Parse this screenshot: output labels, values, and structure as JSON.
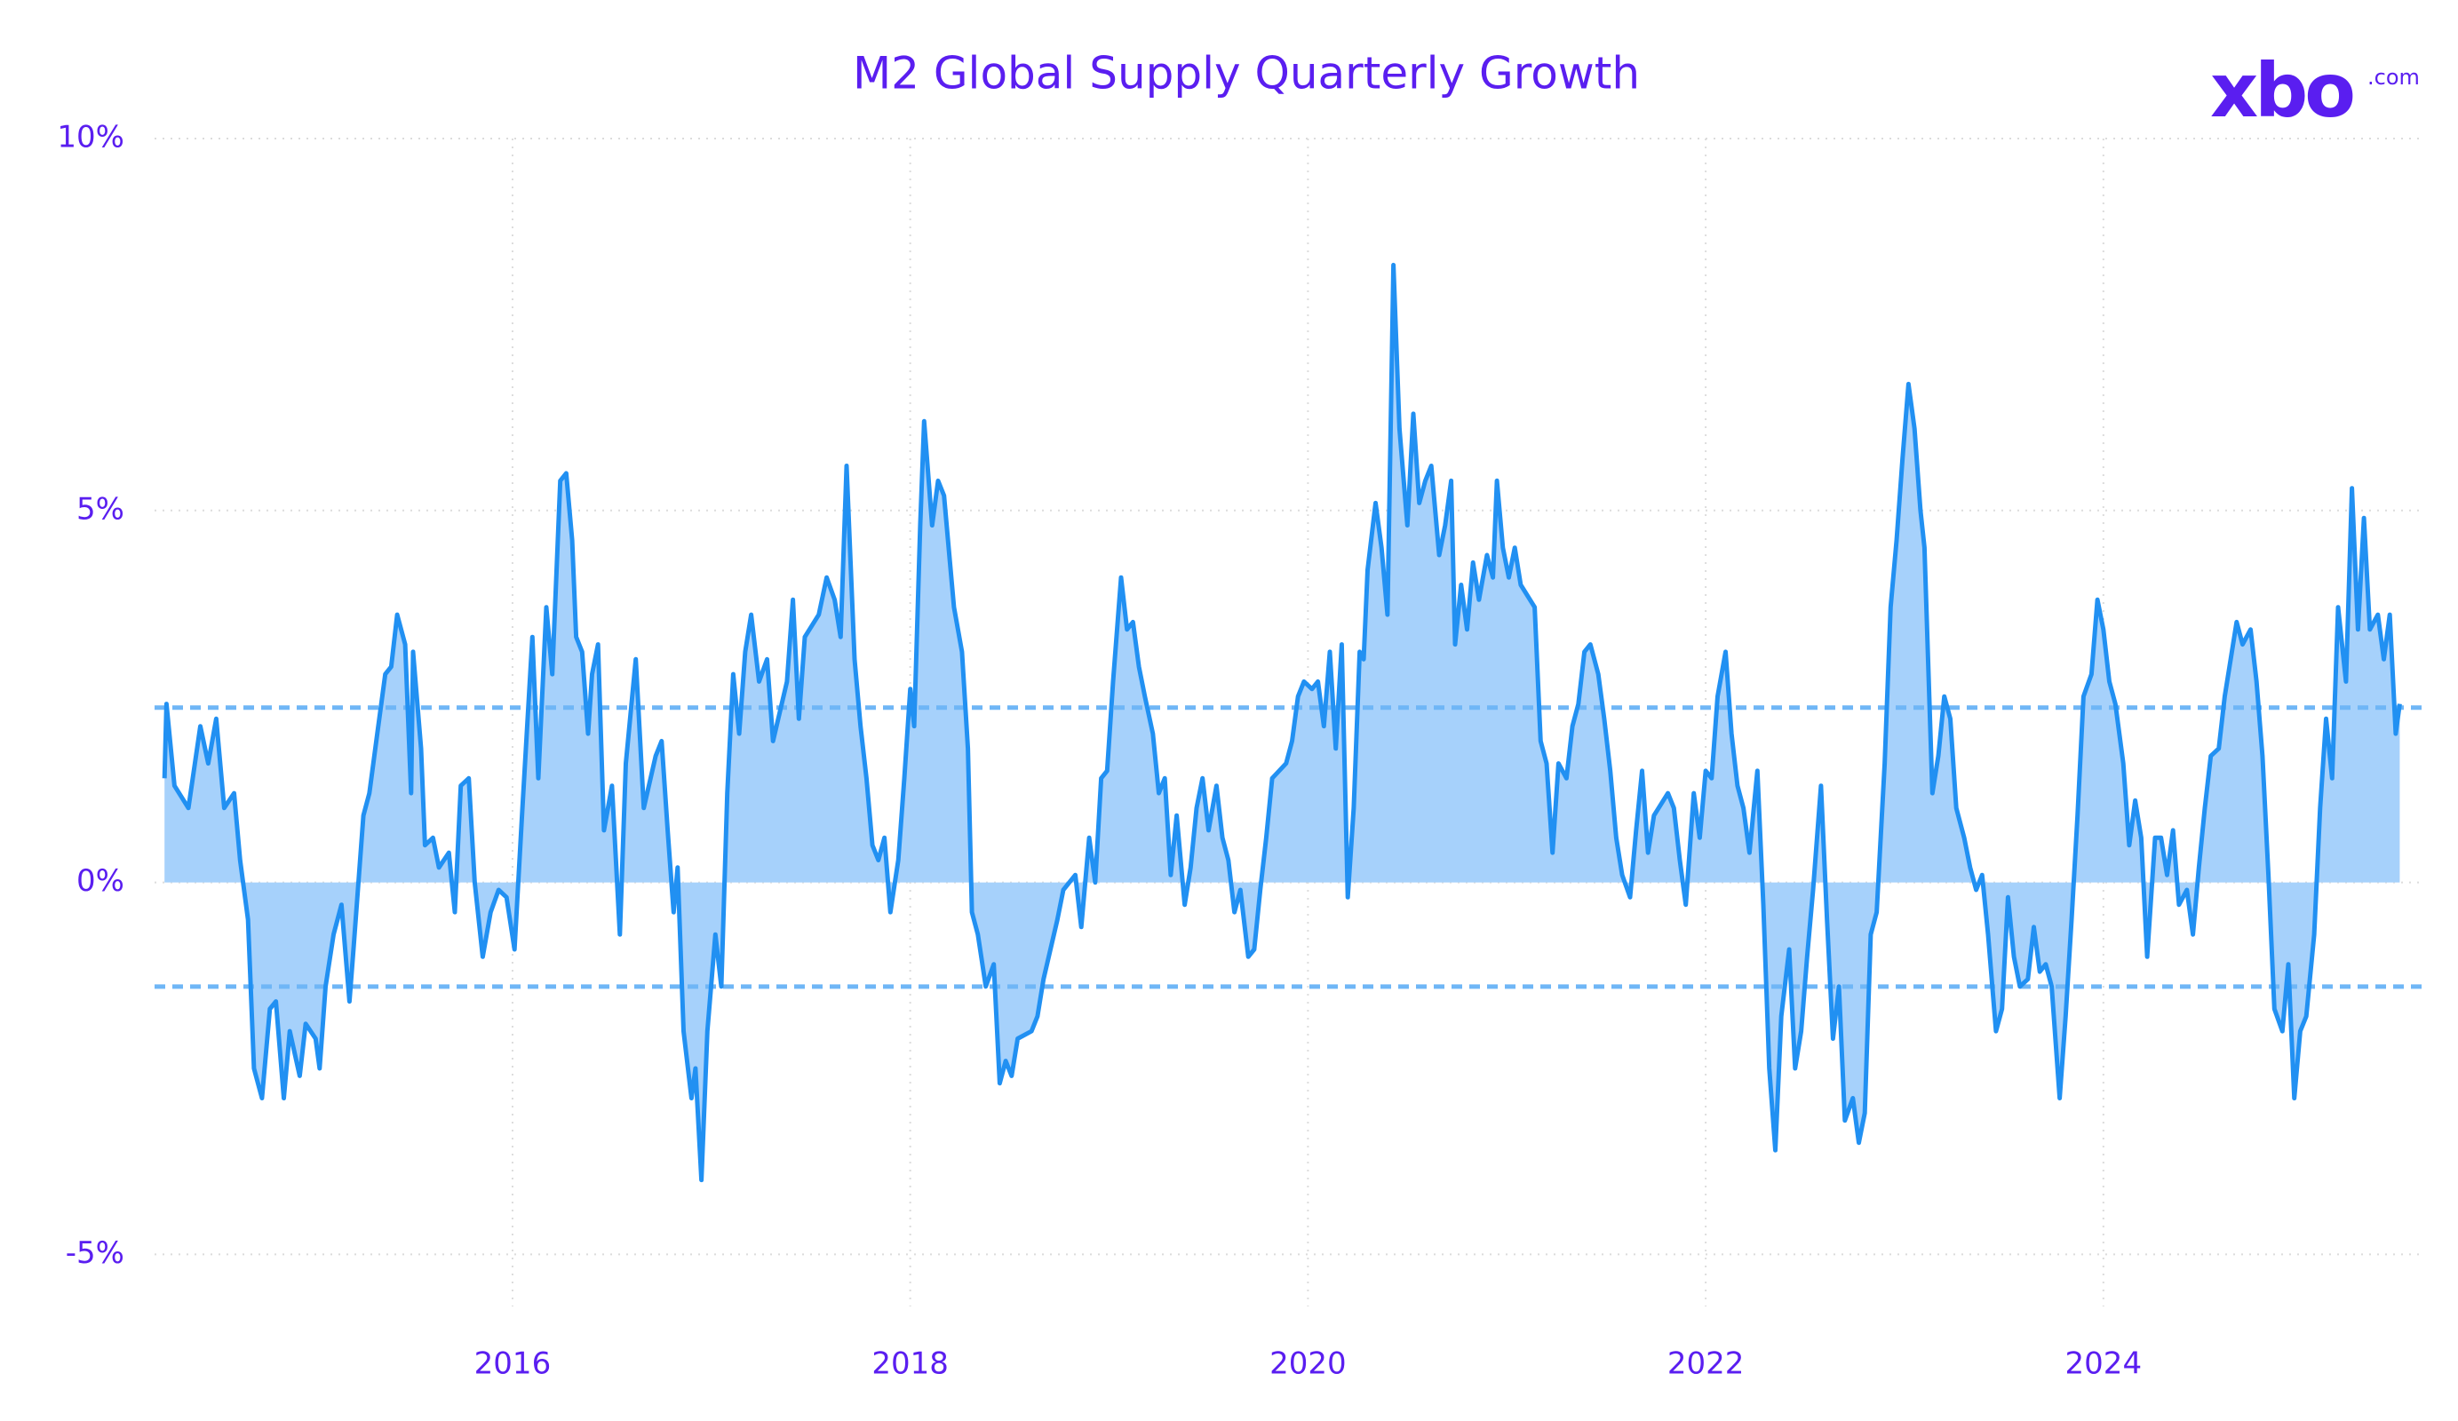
{
  "brand": {
    "name": "xbo",
    "suffix": ".com"
  },
  "chart_data": {
    "type": "area-line",
    "title": "M2 Global Supply Quarterly Growth",
    "x": [
      2014.25,
      2014.26,
      2014.3,
      2014.37,
      2014.43,
      2014.47,
      2014.51,
      2014.55,
      2014.6,
      2014.63,
      2014.67,
      2014.7,
      2014.74,
      2014.78,
      2014.81,
      2014.85,
      2014.88,
      2014.93,
      2014.96,
      2015.01,
      2015.03,
      2015.06,
      2015.1,
      2015.14,
      2015.18,
      2015.2,
      2015.25,
      2015.28,
      2015.32,
      2015.36,
      2015.39,
      2015.42,
      2015.46,
      2015.49,
      2015.5,
      2015.54,
      2015.56,
      2015.6,
      2015.63,
      2015.68,
      2015.71,
      2015.74,
      2015.78,
      2015.81,
      2015.85,
      2015.89,
      2015.93,
      2015.97,
      2016.01,
      2016.05,
      2016.1,
      2016.13,
      2016.17,
      2016.2,
      2016.24,
      2016.27,
      2016.3,
      2016.32,
      2016.35,
      2016.38,
      2016.4,
      2016.43,
      2016.46,
      2016.5,
      2016.54,
      2016.57,
      2016.62,
      2016.66,
      2016.72,
      2016.75,
      2016.78,
      2016.81,
      2016.83,
      2016.86,
      2016.9,
      2016.92,
      2016.95,
      2016.98,
      2017.02,
      2017.05,
      2017.08,
      2017.11,
      2017.14,
      2017.17,
      2017.2,
      2017.24,
      2017.28,
      2017.31,
      2017.38,
      2017.41,
      2017.44,
      2017.47,
      2017.54,
      2017.58,
      2017.62,
      2017.65,
      2017.68,
      2017.72,
      2017.75,
      2017.78,
      2017.81,
      2017.84,
      2017.87,
      2017.9,
      2017.94,
      2017.97,
      2018.0,
      2018.02,
      2018.05,
      2018.07,
      2018.11,
      2018.14,
      2018.17,
      2018.2,
      2018.22,
      2018.26,
      2018.29,
      2018.31,
      2018.34,
      2018.38,
      2018.42,
      2018.45,
      2018.48,
      2018.51,
      2018.54,
      2018.61,
      2018.64,
      2018.67,
      2018.74,
      2018.77,
      2018.83,
      2018.86,
      2018.9,
      2018.93,
      2018.96,
      2018.99,
      2019.02,
      2019.06,
      2019.09,
      2019.12,
      2019.15,
      2019.18,
      2019.22,
      2019.25,
      2019.28,
      2019.31,
      2019.34,
      2019.38,
      2019.41,
      2019.44,
      2019.47,
      2019.5,
      2019.54,
      2019.57,
      2019.6,
      2019.63,
      2019.66,
      2019.7,
      2019.73,
      2019.76,
      2019.79,
      2019.82,
      2019.89,
      2019.92,
      2019.95,
      2019.98,
      2020.02,
      2020.05,
      2020.08,
      2020.11,
      2020.14,
      2020.17,
      2020.2,
      2020.23,
      2020.26,
      2020.28,
      2020.3,
      2020.34,
      2020.37,
      2020.4,
      2020.43,
      2020.46,
      2020.5,
      2020.53,
      2020.56,
      2020.59,
      2020.62,
      2020.66,
      2020.69,
      2020.72,
      2020.74,
      2020.77,
      2020.8,
      2020.83,
      2020.86,
      2020.9,
      2020.93,
      2020.95,
      2020.98,
      2021.01,
      2021.04,
      2021.07,
      2021.14,
      2021.17,
      2021.2,
      2021.23,
      2021.26,
      2021.3,
      2021.33,
      2021.36,
      2021.39,
      2021.42,
      2021.46,
      2021.49,
      2021.52,
      2021.55,
      2021.58,
      2021.62,
      2021.65,
      2021.68,
      2021.71,
      2021.74,
      2021.81,
      2021.84,
      2021.87,
      2021.9,
      2021.94,
      2021.97,
      2022.0,
      2022.03,
      2022.06,
      2022.1,
      2022.13,
      2022.16,
      2022.19,
      2022.22,
      2022.26,
      2022.29,
      2022.32,
      2022.35,
      2022.38,
      2022.42,
      2022.45,
      2022.48,
      2022.51,
      2022.54,
      2022.58,
      2022.61,
      2022.64,
      2022.67,
      2022.7,
      2022.74,
      2022.77,
      2022.8,
      2022.83,
      2022.86,
      2022.9,
      2022.93,
      2022.96,
      2022.99,
      2023.02,
      2023.05,
      2023.08,
      2023.1,
      2023.14,
      2023.17,
      2023.2,
      2023.23,
      2023.26,
      2023.3,
      2023.33,
      2023.36,
      2023.39,
      2023.42,
      2023.46,
      2023.49,
      2023.52,
      2023.55,
      2023.58,
      2023.62,
      2023.65,
      2023.68,
      2023.71,
      2023.74,
      2023.78,
      2023.81,
      2023.84,
      2023.87,
      2023.9,
      2023.94,
      2023.97,
      2024.0,
      2024.03,
      2024.06,
      2024.1,
      2024.13,
      2024.16,
      2024.19,
      2024.22,
      2024.26,
      2024.29,
      2024.32,
      2024.35,
      2024.38,
      2024.42,
      2024.45,
      2024.48,
      2024.51,
      2024.54,
      2024.58,
      2024.61,
      2024.64,
      2024.67,
      2024.7,
      2024.74,
      2024.77,
      2024.8,
      2024.83,
      2024.86,
      2024.9,
      2024.93,
      2024.96,
      2024.99,
      2025.02,
      2025.06,
      2025.09,
      2025.12,
      2025.15,
      2025.18,
      2025.22,
      2025.25,
      2025.28,
      2025.31,
      2025.34,
      2025.38,
      2025.41,
      2025.44,
      2025.47,
      2025.49
    ],
    "values": [
      1.4,
      2.4,
      1.3,
      1.0,
      2.1,
      1.6,
      2.2,
      1.0,
      1.2,
      0.3,
      -0.5,
      -2.5,
      -2.9,
      -1.7,
      -1.6,
      -2.9,
      -2.0,
      -2.6,
      -1.9,
      -2.1,
      -2.5,
      -1.4,
      -0.7,
      -0.3,
      -1.6,
      -0.9,
      0.9,
      1.2,
      2.0,
      2.8,
      2.9,
      3.6,
      3.2,
      1.2,
      3.1,
      1.8,
      0.5,
      0.6,
      0.2,
      0.4,
      -0.4,
      1.3,
      1.4,
      0.0,
      -1.0,
      -0.4,
      -0.1,
      -0.2,
      -0.9,
      1.0,
      3.3,
      1.4,
      3.7,
      2.8,
      5.4,
      5.5,
      4.6,
      3.3,
      3.1,
      2.0,
      2.8,
      3.2,
      0.7,
      1.3,
      -0.7,
      1.6,
      3.0,
      1.0,
      1.7,
      1.9,
      0.7,
      -0.4,
      0.2,
      -2.0,
      -2.9,
      -2.5,
      -4.0,
      -2.0,
      -0.7,
      -1.4,
      1.2,
      2.8,
      2.0,
      3.1,
      3.6,
      2.7,
      3.0,
      1.9,
      2.7,
      3.8,
      2.2,
      3.3,
      3.6,
      4.1,
      3.8,
      3.3,
      5.6,
      3.0,
      2.1,
      1.4,
      0.5,
      0.3,
      0.6,
      -0.4,
      0.3,
      1.4,
      2.6,
      2.1,
      4.8,
      6.2,
      4.8,
      5.4,
      5.2,
      4.3,
      3.7,
      3.1,
      1.8,
      -0.4,
      -0.7,
      -1.4,
      -1.1,
      -2.7,
      -2.4,
      -2.6,
      -2.1,
      -2.0,
      -1.8,
      -1.3,
      -0.5,
      -0.1,
      0.1,
      -0.6,
      0.6,
      0.0,
      1.4,
      1.5,
      2.7,
      4.1,
      3.4,
      3.5,
      2.9,
      2.5,
      2.0,
      1.2,
      1.4,
      0.1,
      0.9,
      -0.3,
      0.2,
      1.0,
      1.4,
      0.7,
      1.3,
      0.6,
      0.3,
      -0.4,
      -0.1,
      -1.0,
      -0.9,
      -0.1,
      0.6,
      1.4,
      1.6,
      1.9,
      2.5,
      2.7,
      2.6,
      2.7,
      2.1,
      3.1,
      1.8,
      3.2,
      -0.2,
      1.0,
      3.1,
      3.0,
      4.2,
      5.1,
      4.5,
      3.6,
      8.3,
      6.1,
      4.8,
      6.3,
      5.1,
      5.4,
      5.6,
      4.4,
      4.8,
      5.4,
      3.2,
      4.0,
      3.4,
      4.3,
      3.8,
      4.4,
      4.1,
      5.4,
      4.5,
      4.1,
      4.5,
      4.0,
      3.7,
      1.9,
      1.6,
      0.4,
      1.6,
      1.4,
      2.1,
      2.4,
      3.1,
      3.2,
      2.8,
      2.2,
      1.5,
      0.6,
      0.1,
      -0.2,
      0.7,
      1.5,
      0.4,
      0.9,
      1.2,
      1.0,
      0.3,
      -0.3,
      1.2,
      0.6,
      1.5,
      1.4,
      2.5,
      3.1,
      2.0,
      1.3,
      1.0,
      0.4,
      1.5,
      -0.3,
      -2.5,
      -3.6,
      -1.8,
      -0.9,
      -2.5,
      -2.0,
      -1.0,
      -0.1,
      1.3,
      -0.5,
      -2.1,
      -1.4,
      -3.2,
      -2.9,
      -3.5,
      -3.1,
      -0.7,
      -0.4,
      1.6,
      3.7,
      4.6,
      5.7,
      6.7,
      6.1,
      5.0,
      4.5,
      1.2,
      1.7,
      2.5,
      2.2,
      1.0,
      0.6,
      0.2,
      -0.1,
      0.1,
      -0.7,
      -2.0,
      -1.7,
      -0.2,
      -1.0,
      -1.4,
      -1.3,
      -0.6,
      -1.2,
      -1.1,
      -1.4,
      -2.9,
      -1.8,
      -0.5,
      0.9,
      2.5,
      2.8,
      3.8,
      3.4,
      2.7,
      2.4,
      1.6,
      0.5,
      1.1,
      0.6,
      -1.0,
      0.6,
      0.6,
      0.1,
      0.7,
      -0.3,
      -0.1,
      -0.7,
      0.2,
      1.0,
      1.7,
      1.8,
      2.5,
      3.0,
      3.5,
      3.2,
      3.4,
      2.7,
      1.7,
      0.1,
      -1.7,
      -2.0,
      -1.1,
      -2.9,
      -2.0,
      -1.8,
      -0.7,
      1.0,
      2.2,
      1.4,
      3.7,
      2.7,
      5.3,
      3.4,
      4.9,
      3.4,
      3.6,
      3.0,
      3.6,
      2.0,
      2.4
    ],
    "color": "#2190f2",
    "fill_color": "#a6d1fb",
    "reference_lines": [
      2.35,
      -1.4
    ],
    "reference_color": "#6fb6f6",
    "xlim": [
      2014.2,
      2025.6
    ],
    "xticks": [
      2016,
      2018,
      2020,
      2022,
      2024
    ],
    "ylim": [
      -5.7,
      10
    ],
    "yticks": [
      {
        "value": -5,
        "label": "-5%"
      },
      {
        "value": 0,
        "label": "0%"
      },
      {
        "value": 5,
        "label": "5%"
      },
      {
        "value": 10,
        "label": "10%"
      }
    ],
    "grid": true
  }
}
